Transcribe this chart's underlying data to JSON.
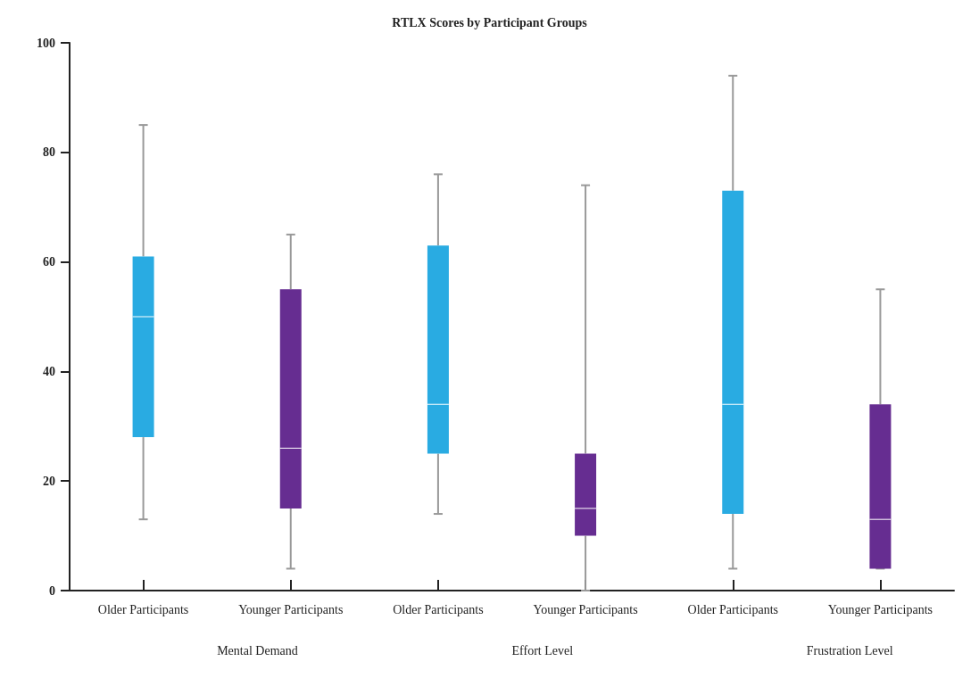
{
  "chart_data": {
    "type": "box",
    "title": "RTLX Scores by Participant Groups",
    "categories": [
      "Older Participants",
      "Younger Participants",
      "Older Participants",
      "Younger Participants",
      "Older Participants",
      "Younger Participants"
    ],
    "boxes": [
      {
        "low": 13,
        "q1": 28,
        "median": 50,
        "q3": 61,
        "high": 85
      },
      {
        "low": 4,
        "q1": 15,
        "median": 26,
        "q3": 55,
        "high": 65
      },
      {
        "low": 14,
        "q1": 25,
        "median": 34,
        "q3": 63,
        "high": 76
      },
      {
        "low": 0,
        "q1": 10,
        "median": 15,
        "q3": 25,
        "high": 74
      },
      {
        "low": 4,
        "q1": 14,
        "median": 34,
        "q3": 73,
        "high": 94
      },
      {
        "low": 4,
        "q1": 4,
        "median": 13,
        "q3": 34,
        "high": 55
      }
    ],
    "colors": [
      "#29abe2",
      "#662d91",
      "#29abe2",
      "#662d91",
      "#29abe2",
      "#662d91"
    ],
    "annotations": [
      "Mental Demand",
      "Effort Level",
      "Frustration Level"
    ],
    "ylim": [
      0,
      100
    ],
    "yticks": [
      0,
      20,
      40,
      60,
      80,
      100
    ]
  }
}
